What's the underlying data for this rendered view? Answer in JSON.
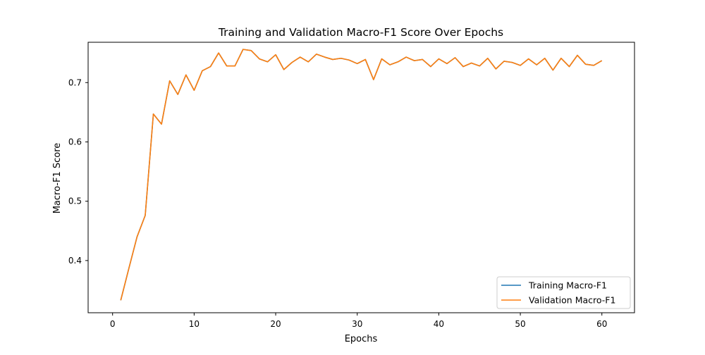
{
  "chart_data": {
    "type": "line",
    "title": "Training and Validation Macro-F1 Score Over Epochs",
    "xlabel": "Epochs",
    "ylabel": "Macro-F1 Score",
    "xlim": [
      -3.0,
      64.0
    ],
    "ylim": [
      0.312,
      0.768
    ],
    "xticks": [
      0,
      10,
      20,
      30,
      40,
      50,
      60
    ],
    "yticks": [
      0.4,
      0.5,
      0.6,
      0.7
    ],
    "ytick_labels": [
      "0.4",
      "0.5",
      "0.6",
      "0.7"
    ],
    "grid": false,
    "legend_position": "lower-right",
    "x": [
      1,
      2,
      3,
      4,
      5,
      6,
      7,
      8,
      9,
      10,
      11,
      12,
      13,
      14,
      15,
      16,
      17,
      18,
      19,
      20,
      21,
      22,
      23,
      24,
      25,
      26,
      27,
      28,
      29,
      30,
      31,
      32,
      33,
      34,
      35,
      36,
      37,
      38,
      39,
      40,
      41,
      42,
      43,
      44,
      45,
      46,
      47,
      48,
      49,
      50,
      51,
      52,
      53,
      54,
      55,
      56,
      57,
      58,
      59,
      60
    ],
    "series": [
      {
        "name": "Training Macro-F1",
        "color": "#1f77b4",
        "values": [
          0.333,
          0.387,
          0.44,
          0.476,
          0.647,
          0.63,
          0.703,
          0.68,
          0.713,
          0.687,
          0.72,
          0.727,
          0.75,
          0.728,
          0.728,
          0.756,
          0.754,
          0.74,
          0.735,
          0.747,
          0.722,
          0.734,
          0.743,
          0.735,
          0.748,
          0.743,
          0.739,
          0.741,
          0.738,
          0.732,
          0.739,
          0.705,
          0.74,
          0.73,
          0.735,
          0.743,
          0.737,
          0.739,
          0.727,
          0.74,
          0.732,
          0.742,
          0.727,
          0.733,
          0.728,
          0.741,
          0.723,
          0.736,
          0.734,
          0.729,
          0.74,
          0.73,
          0.741,
          0.721,
          0.741,
          0.727,
          0.746,
          0.731,
          0.729,
          0.737
        ]
      },
      {
        "name": "Validation Macro-F1",
        "color": "#ff7f0e",
        "values": [
          0.333,
          0.387,
          0.44,
          0.476,
          0.647,
          0.63,
          0.703,
          0.68,
          0.713,
          0.687,
          0.72,
          0.727,
          0.75,
          0.728,
          0.728,
          0.756,
          0.754,
          0.74,
          0.735,
          0.747,
          0.722,
          0.734,
          0.743,
          0.735,
          0.748,
          0.743,
          0.739,
          0.741,
          0.738,
          0.732,
          0.739,
          0.705,
          0.74,
          0.73,
          0.735,
          0.743,
          0.737,
          0.739,
          0.727,
          0.74,
          0.732,
          0.742,
          0.727,
          0.733,
          0.728,
          0.741,
          0.723,
          0.736,
          0.734,
          0.729,
          0.74,
          0.73,
          0.741,
          0.721,
          0.741,
          0.727,
          0.746,
          0.731,
          0.729,
          0.737
        ]
      }
    ]
  }
}
